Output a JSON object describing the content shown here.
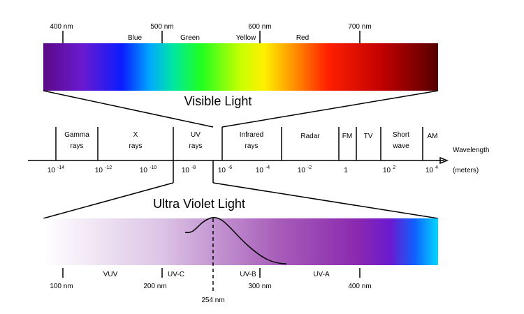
{
  "visible": {
    "title": "Visible Light",
    "ticks": [
      "400 nm",
      "500 nm",
      "600 nm",
      "700 nm"
    ],
    "colors": [
      "Blue",
      "Green",
      "Yellow",
      "Red"
    ]
  },
  "spectrum": {
    "axis_label": "Wavelength",
    "unit": "(meters)",
    "bands": [
      [
        "Gamma",
        "rays"
      ],
      [
        "X",
        "rays"
      ],
      [
        "UV",
        "rays"
      ],
      [
        "Infrared",
        "rays"
      ],
      [
        "Radar"
      ],
      [
        "FM"
      ],
      [
        "TV"
      ],
      [
        "Short",
        "wave"
      ],
      [
        "AM"
      ]
    ],
    "scale": [
      {
        "base": "10",
        "exp": "-14"
      },
      {
        "base": "10",
        "exp": "-12"
      },
      {
        "base": "10",
        "exp": "-10"
      },
      {
        "base": "10",
        "exp": "-8"
      },
      {
        "base": "10",
        "exp": "-6"
      },
      {
        "base": "10",
        "exp": "-4"
      },
      {
        "base": "10",
        "exp": "-2"
      },
      {
        "base": "1"
      },
      {
        "base": "10",
        "exp": "2"
      },
      {
        "base": "10",
        "exp": "4"
      }
    ]
  },
  "ultraviolet": {
    "title": "Ultra Violet Light",
    "ticks": [
      "100 nm",
      "200 nm",
      "300 nm",
      "400 nm"
    ],
    "regions": [
      "VUV",
      "UV-C",
      "UV-B",
      "UV-A"
    ],
    "marker": "254 nm"
  }
}
